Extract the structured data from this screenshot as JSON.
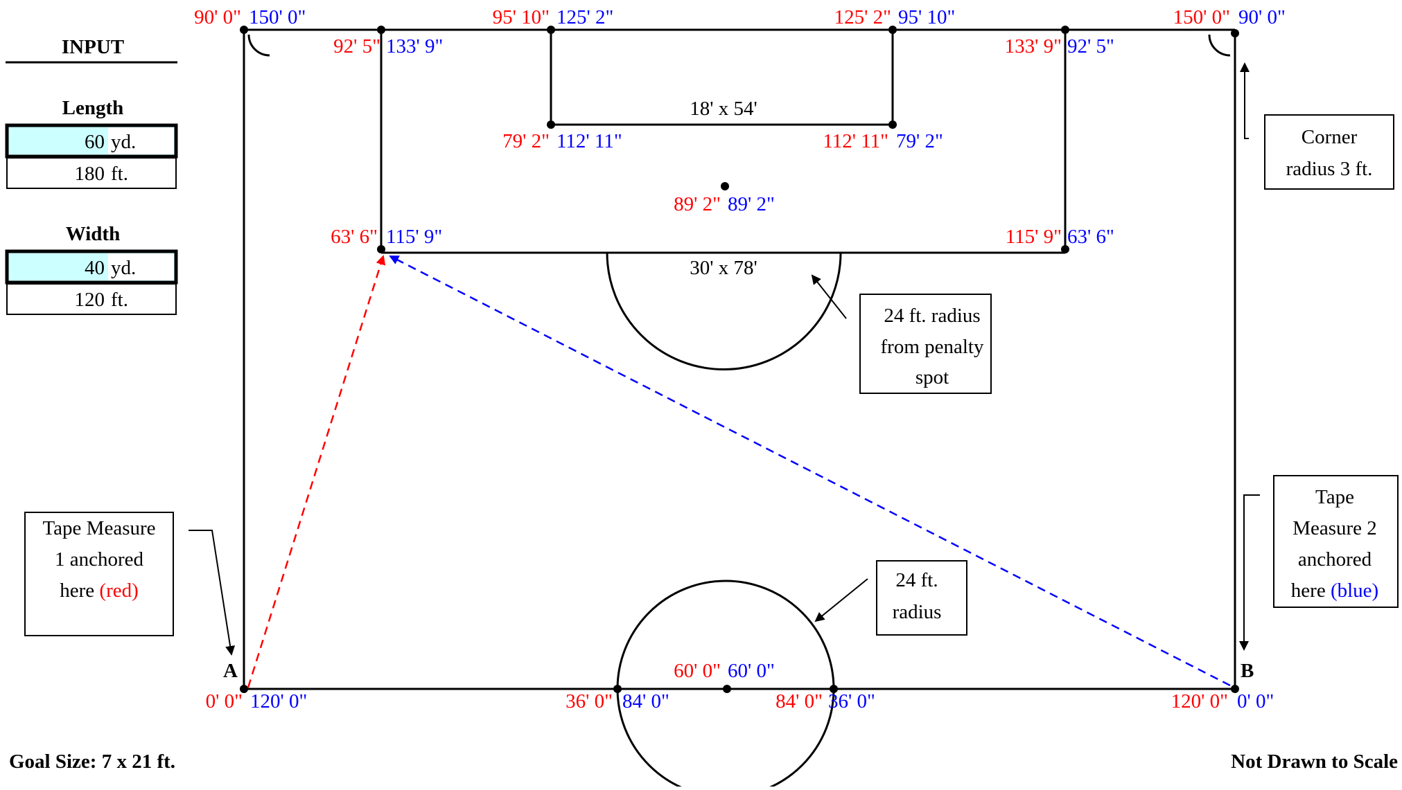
{
  "input_panel": {
    "title": "INPUT",
    "length": {
      "label": "Length",
      "yd_value": "60",
      "yd_unit": "yd.",
      "ft_value": "180",
      "ft_unit": "ft."
    },
    "width": {
      "label": "Width",
      "yd_value": "40",
      "yd_unit": "yd.",
      "ft_value": "120",
      "ft_unit": "ft."
    }
  },
  "footer": {
    "goal_size": "Goal Size: 7 x 21 ft.",
    "scale_note": "Not Drawn to Scale"
  },
  "anchors": {
    "a": "A",
    "b": "B"
  },
  "colors": {
    "red": "#ff0000",
    "blue": "#0000ff",
    "input_fill": "#ccffff"
  },
  "measurements": {
    "top_left_corner": {
      "red": "90' 0\"",
      "blue": "150' 0\""
    },
    "top_right_corner": {
      "red": "150' 0\"",
      "blue": "90' 0\""
    },
    "goal_box_top_left": {
      "red": "95' 10\"",
      "blue": "125' 2\""
    },
    "goal_box_top_right": {
      "red": "125' 2\"",
      "blue": "95' 10\""
    },
    "penalty_area_top_left": {
      "red": "92' 5\"",
      "blue": "133' 9\""
    },
    "penalty_area_top_right": {
      "red": "133' 9\"",
      "blue": "92' 5\""
    },
    "goal_box_bottom_left": {
      "red": "79' 2\"",
      "blue": "112' 11\""
    },
    "goal_box_bottom_right": {
      "red": "112' 11\"",
      "blue": "79' 2\""
    },
    "penalty_spot": {
      "red": "89' 2\"",
      "blue": "89' 2\""
    },
    "penalty_area_bottom_left": {
      "red": "63' 6\"",
      "blue": "115' 9\""
    },
    "penalty_area_bottom_right": {
      "red": "115' 9\"",
      "blue": "63' 6\""
    },
    "center_mark": {
      "red": "60' 0\"",
      "blue": "60' 0\""
    },
    "center_circle_left": {
      "red": "36' 0\"",
      "blue": "84' 0\""
    },
    "center_circle_right": {
      "red": "84' 0\"",
      "blue": "36' 0\""
    },
    "anchor_a": {
      "red": "0' 0\"",
      "blue": "120' 0\""
    },
    "anchor_b": {
      "red": "120' 0\"",
      "blue": "0' 0\""
    }
  },
  "dimension_labels": {
    "goal_box": "18' x 54'",
    "penalty_area": "30' x 78'"
  },
  "callouts": {
    "corner_radius": [
      "Corner",
      "radius 3 ft."
    ],
    "penalty_arc": [
      "24 ft. radius",
      "from penalty",
      "spot"
    ],
    "center_circle": [
      "24 ft.",
      "radius"
    ],
    "tape1": {
      "lines": [
        "Tape Measure",
        "1 anchored"
      ],
      "prefix": "here ",
      "colored": "(red)"
    },
    "tape2": {
      "lines": [
        "Tape",
        "Measure 2",
        "anchored"
      ],
      "prefix": "here ",
      "colored": "(blue)"
    }
  }
}
